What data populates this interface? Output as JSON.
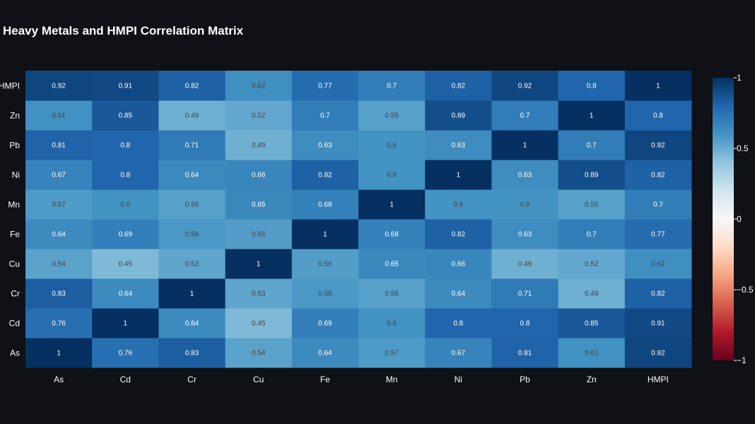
{
  "chart_data": {
    "type": "heatmap",
    "title": "Heavy Metals and HMPI Correlation Matrix",
    "x_categories": [
      "As",
      "Cd",
      "Cr",
      "Cu",
      "Fe",
      "Mn",
      "Ni",
      "Pb",
      "Zn",
      "HMPI"
    ],
    "y_categories": [
      "As",
      "Cd",
      "Cr",
      "Cu",
      "Fe",
      "Mn",
      "Ni",
      "Pb",
      "Zn",
      "HMPI"
    ],
    "values": [
      [
        1,
        0.76,
        0.83,
        0.54,
        0.64,
        0.57,
        0.67,
        0.81,
        0.61,
        0.92
      ],
      [
        0.76,
        1,
        0.64,
        0.45,
        0.69,
        0.6,
        0.8,
        0.8,
        0.85,
        0.91
      ],
      [
        0.83,
        0.64,
        1,
        0.53,
        0.58,
        0.55,
        0.64,
        0.71,
        0.49,
        0.82
      ],
      [
        0.54,
        0.45,
        0.53,
        1,
        0.56,
        0.65,
        0.66,
        0.49,
        0.52,
        0.62
      ],
      [
        0.64,
        0.69,
        0.58,
        0.56,
        1,
        0.68,
        0.82,
        0.63,
        0.7,
        0.77
      ],
      [
        0.57,
        0.6,
        0.55,
        0.65,
        0.68,
        1,
        0.6,
        0.6,
        0.55,
        0.7
      ],
      [
        0.67,
        0.8,
        0.64,
        0.66,
        0.82,
        0.6,
        1,
        0.63,
        0.89,
        0.82
      ],
      [
        0.81,
        0.8,
        0.71,
        0.49,
        0.63,
        0.6,
        0.63,
        1,
        0.7,
        0.92
      ],
      [
        0.61,
        0.85,
        0.49,
        0.52,
        0.7,
        0.55,
        0.89,
        0.7,
        1,
        0.8
      ],
      [
        0.92,
        0.91,
        0.82,
        0.62,
        0.77,
        0.7,
        0.82,
        0.92,
        0.8,
        1
      ]
    ],
    "zlim": [
      -1,
      1
    ],
    "colorscale": "RdBu",
    "colorbar_ticks": [
      1,
      0.5,
      0,
      -0.5,
      -1
    ],
    "colorbar_tick_labels": [
      "1",
      "0.5",
      "0",
      "−0.5",
      "−1"
    ],
    "background_color": "#0f1117"
  }
}
